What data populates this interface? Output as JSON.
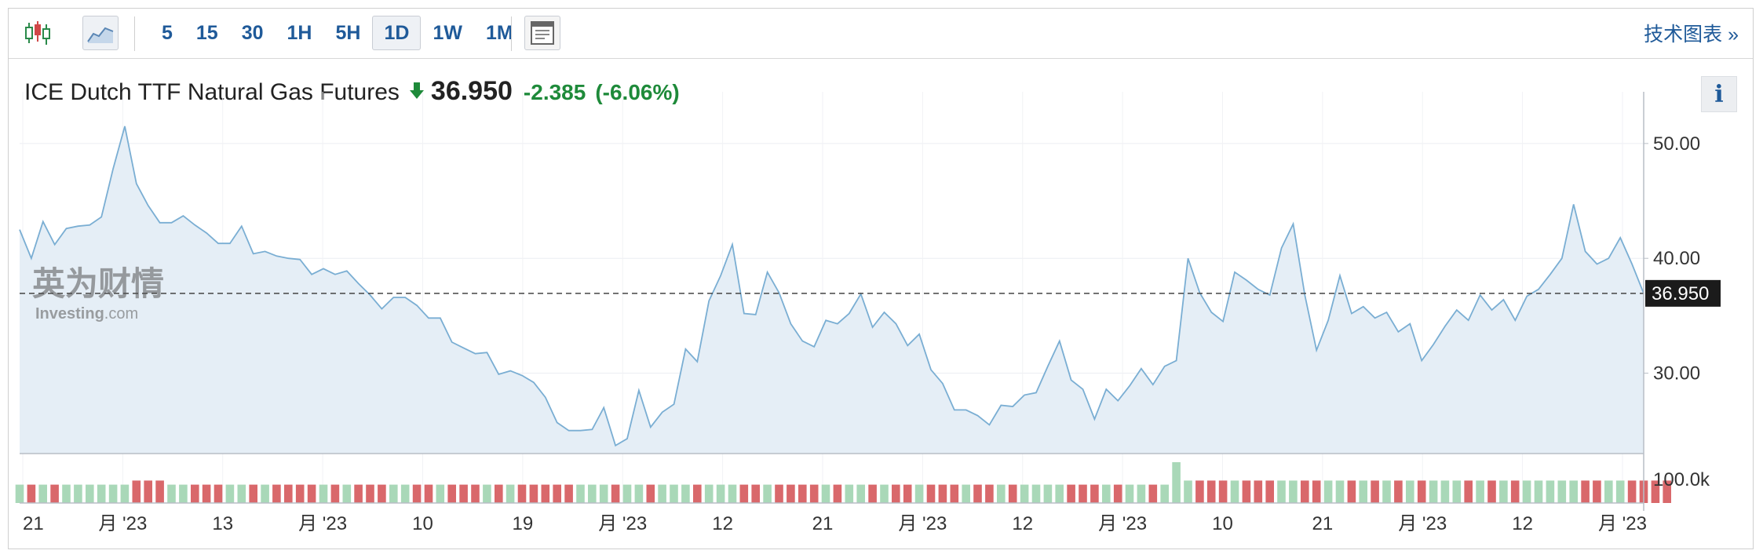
{
  "toolbar": {
    "intervals": [
      "5",
      "15",
      "30",
      "1H",
      "5H",
      "1D",
      "1W",
      "1M"
    ],
    "active_interval": "1D",
    "tech_chart_link": "技术图表 »"
  },
  "header": {
    "instrument": "ICE Dutch TTF Natural Gas Futures",
    "price": "36.950",
    "change": "-2.385",
    "change_pct": "(-6.06%)",
    "info_label": "i",
    "direction": "down",
    "down_color": "#1e8a3a"
  },
  "watermark": {
    "cn": "英为财情",
    "en": "Investing",
    "en_suffix": ".com"
  },
  "chart_data": {
    "type": "area",
    "ylim": [
      23.0,
      54.5
    ],
    "y_ticks": [
      "50.00",
      "40.00",
      "30.00"
    ],
    "volume_tick": "100.0k",
    "last_value_label": "36.950",
    "last_value": 36.95,
    "x_tick_labels": [
      "21",
      "月 '23",
      "13",
      "月 '23",
      "10",
      "19",
      "月 '23",
      "12",
      "21",
      "月 '23",
      "12",
      "月 '23",
      "10",
      "21",
      "月 '23",
      "12",
      "月 '23"
    ],
    "price": [
      42.5,
      40.0,
      43.2,
      41.2,
      42.6,
      42.8,
      42.9,
      43.6,
      47.8,
      51.5,
      46.5,
      44.6,
      43.1,
      43.1,
      43.7,
      42.9,
      42.2,
      41.3,
      41.3,
      42.8,
      40.4,
      40.6,
      40.2,
      40.0,
      39.9,
      38.6,
      39.1,
      38.6,
      38.9,
      37.8,
      36.8,
      35.6,
      36.6,
      36.6,
      35.9,
      34.8,
      34.8,
      32.7,
      32.2,
      31.7,
      31.8,
      29.9,
      30.2,
      29.8,
      29.2,
      27.9,
      25.7,
      25.0,
      25.0,
      25.1,
      27.0,
      23.7,
      24.3,
      28.5,
      25.3,
      26.6,
      27.3,
      32.1,
      31.0,
      36.3,
      38.5,
      41.2,
      35.2,
      35.1,
      38.8,
      37.0,
      34.3,
      32.8,
      32.3,
      34.6,
      34.3,
      35.2,
      36.9,
      34.0,
      35.3,
      34.3,
      32.4,
      33.4,
      30.3,
      29.1,
      26.8,
      26.8,
      26.3,
      25.5,
      27.2,
      27.1,
      28.1,
      28.3,
      30.6,
      32.8,
      29.4,
      28.6,
      26.0,
      28.6,
      27.6,
      28.9,
      30.4,
      29.0,
      30.6,
      31.1,
      40.0,
      37.0,
      35.3,
      34.5,
      38.8,
      38.1,
      37.3,
      36.8,
      40.9,
      43.0,
      36.8,
      32.0,
      34.6,
      38.5,
      35.2,
      35.8,
      34.8,
      35.3,
      33.6,
      34.3,
      31.1,
      32.5,
      34.1,
      35.5,
      34.6,
      36.8,
      35.5,
      36.4,
      34.6,
      36.7,
      37.3,
      38.6,
      40.0,
      44.7,
      40.6,
      39.5,
      40.0,
      41.8,
      39.5,
      36.95
    ],
    "volume": [
      45,
      45,
      45,
      45,
      45,
      45,
      45,
      45,
      45,
      45,
      55,
      55,
      55,
      45,
      45,
      45,
      45,
      45,
      45,
      45,
      45,
      45,
      45,
      45,
      45,
      45,
      45,
      45,
      45,
      45,
      45,
      45,
      45,
      45,
      45,
      45,
      45,
      45,
      45,
      45,
      45,
      45,
      45,
      45,
      45,
      45,
      45,
      45,
      45,
      45,
      45,
      45,
      45,
      45,
      45,
      45,
      45,
      45,
      45,
      45,
      45,
      45,
      45,
      45,
      45,
      45,
      45,
      45,
      45,
      45,
      45,
      45,
      45,
      45,
      45,
      45,
      45,
      45,
      45,
      45,
      45,
      45,
      45,
      45,
      45,
      45,
      45,
      45,
      45,
      45,
      45,
      45,
      45,
      45,
      45,
      45,
      45,
      45,
      45,
      100,
      55,
      55,
      55,
      55,
      55,
      55,
      55,
      55,
      55,
      55,
      55,
      55,
      55,
      55,
      55,
      55,
      55,
      55,
      55,
      55,
      55,
      55,
      55,
      55,
      55,
      55,
      55,
      55,
      55,
      55,
      55,
      55,
      55,
      55,
      55,
      55,
      55,
      55,
      55,
      55,
      55,
      55
    ],
    "up_color": "#a9d8b8",
    "down_bar_color": "#d9686b",
    "line_color": "#7aaed3",
    "fill_color": "#e5eef6"
  }
}
